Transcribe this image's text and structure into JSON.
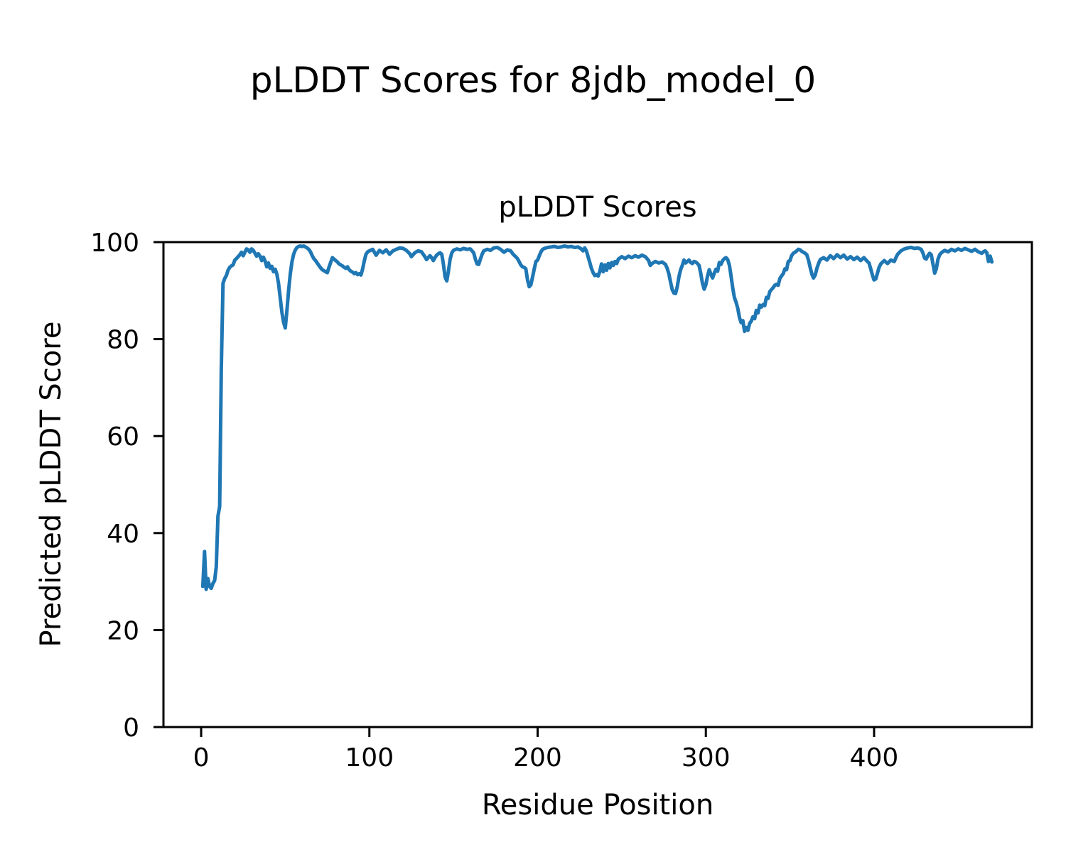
{
  "figure": {
    "suptitle": "pLDDT Scores for 8jdb_model_0",
    "background_color": "#ffffff",
    "text_color": "#000000"
  },
  "chart_data": {
    "type": "line",
    "title": "pLDDT Scores",
    "xlabel": "Residue Position",
    "ylabel": "Predicted pLDDT Score",
    "xlim": [
      -22.4,
      493.8
    ],
    "ylim": [
      0,
      100
    ],
    "xticks": [
      0,
      100,
      200,
      300,
      400
    ],
    "yticks": [
      0,
      20,
      40,
      60,
      80,
      100
    ],
    "grid": false,
    "legend": null,
    "line_color": "#1f77b4",
    "series": [
      {
        "name": "pLDDT",
        "x": [
          1,
          2,
          3,
          4,
          5,
          6,
          7,
          8,
          9,
          10,
          11,
          12,
          13,
          14,
          15,
          16,
          17,
          18,
          19,
          20,
          21,
          22,
          23,
          24,
          25,
          26,
          27,
          28,
          29,
          30,
          31,
          32,
          33,
          34,
          35,
          36,
          37,
          38,
          39,
          40,
          41,
          42,
          43,
          44,
          45,
          46,
          47,
          48,
          49,
          50,
          51,
          52,
          53,
          54,
          55,
          56,
          57,
          58,
          59,
          60,
          61,
          62,
          63,
          64,
          65,
          66,
          67,
          68,
          69,
          70,
          71,
          72,
          73,
          74,
          75,
          76,
          77,
          78,
          79,
          80,
          81,
          82,
          83,
          84,
          85,
          86,
          87,
          88,
          89,
          90,
          91,
          92,
          93,
          94,
          95,
          96,
          97,
          98,
          99,
          100,
          102,
          104,
          106,
          108,
          110,
          112,
          114,
          116,
          118,
          120,
          122,
          124,
          125,
          126,
          127,
          129,
          131,
          133,
          134,
          135,
          136,
          137,
          138,
          139,
          140,
          141,
          142,
          143,
          144,
          145,
          146,
          147,
          148,
          149,
          150,
          152,
          154,
          156,
          158,
          160,
          162,
          163,
          164,
          165,
          166,
          167,
          168,
          170,
          172,
          174,
          176,
          178,
          180,
          182,
          184,
          185,
          186,
          187,
          188,
          189,
          190,
          191,
          192,
          193,
          194,
          195,
          196,
          197,
          198,
          199,
          200,
          201,
          202,
          203,
          204,
          206,
          208,
          210,
          212,
          214,
          216,
          218,
          220,
          222,
          224,
          226,
          227,
          228,
          229,
          230,
          231,
          232,
          233,
          234,
          235,
          236,
          237,
          238,
          239,
          240,
          241,
          242,
          243,
          244,
          245,
          246,
          247,
          248,
          250,
          252,
          254,
          256,
          258,
          260,
          262,
          264,
          265,
          266,
          267,
          268,
          270,
          272,
          274,
          276,
          277,
          278,
          279,
          280,
          281,
          282,
          283,
          284,
          285,
          286,
          287,
          288,
          289,
          290,
          291,
          292,
          293,
          294,
          295,
          296,
          297,
          298,
          299,
          300,
          301,
          302,
          303,
          304,
          305,
          306,
          307,
          308,
          309,
          310,
          311,
          312,
          313,
          314,
          315,
          316,
          317,
          318,
          319,
          320,
          321,
          322,
          323,
          324,
          325,
          326,
          327,
          328,
          329,
          330,
          331,
          332,
          333,
          334,
          335,
          336,
          337,
          338,
          339,
          340,
          341,
          342,
          343,
          344,
          345,
          346,
          347,
          348,
          349,
          350,
          351,
          352,
          353,
          354,
          355,
          356,
          357,
          358,
          359,
          360,
          361,
          362,
          363,
          364,
          365,
          366,
          367,
          368,
          370,
          372,
          374,
          376,
          378,
          380,
          382,
          384,
          386,
          388,
          390,
          392,
          394,
          396,
          397,
          398,
          399,
          400,
          401,
          402,
          403,
          404,
          406,
          408,
          410,
          412,
          413,
          414,
          416,
          418,
          420,
          422,
          424,
          426,
          428,
          429,
          430,
          431,
          432,
          433,
          434,
          435,
          436,
          437,
          438,
          439,
          440,
          442,
          444,
          446,
          448,
          450,
          452,
          454,
          456,
          458,
          460,
          462,
          464,
          465,
          466,
          467,
          468,
          469,
          470
        ],
        "y": [
          29.0,
          36.2,
          28.4,
          30.6,
          29.0,
          28.6,
          29.6,
          30.2,
          33.0,
          43.5,
          45.5,
          74.0,
          91.5,
          92.5,
          93.1,
          94.2,
          94.8,
          95.1,
          95.3,
          96.3,
          96.6,
          97.0,
          97.4,
          97.9,
          97.2,
          97.9,
          98.6,
          98.4,
          97.9,
          98.6,
          98.3,
          97.7,
          97.1,
          97.6,
          97.1,
          96.2,
          96.9,
          96.1,
          94.9,
          95.7,
          94.6,
          95.0,
          93.9,
          94.4,
          93.4,
          91.5,
          88.5,
          85.5,
          83.5,
          82.3,
          86.0,
          90.0,
          93.5,
          96.0,
          97.5,
          98.4,
          98.9,
          99.1,
          99.2,
          99.1,
          99.2,
          99.0,
          98.8,
          98.5,
          98.0,
          97.2,
          96.6,
          96.2,
          95.7,
          95.2,
          94.7,
          94.3,
          94.1,
          93.9,
          93.7,
          94.8,
          95.8,
          96.8,
          96.5,
          96.2,
          95.9,
          95.5,
          95.3,
          95.1,
          94.8,
          94.6,
          94.9,
          94.3,
          94.0,
          93.8,
          93.5,
          93.7,
          93.3,
          93.5,
          93.2,
          94.5,
          96.2,
          97.5,
          98.0,
          98.2,
          98.5,
          97.3,
          98.3,
          97.8,
          98.4,
          97.5,
          98.2,
          98.5,
          98.8,
          98.7,
          98.3,
          97.6,
          97.0,
          97.4,
          97.8,
          98.2,
          98.0,
          97.0,
          96.4,
          96.8,
          97.2,
          96.8,
          96.2,
          96.8,
          97.3,
          97.6,
          97.8,
          97.5,
          95.5,
          92.8,
          92.0,
          94.0,
          96.5,
          97.8,
          98.3,
          98.6,
          98.4,
          98.7,
          98.5,
          98.6,
          97.8,
          96.5,
          95.5,
          95.4,
          96.5,
          97.5,
          98.2,
          98.5,
          98.3,
          98.8,
          98.9,
          98.5,
          97.9,
          98.4,
          98.2,
          97.7,
          97.3,
          97.0,
          96.6,
          96.0,
          95.3,
          94.9,
          94.8,
          94.5,
          92.2,
          90.8,
          91.2,
          92.8,
          94.5,
          96.0,
          96.3,
          97.2,
          98.0,
          98.5,
          98.7,
          98.9,
          99.0,
          99.1,
          98.9,
          99.0,
          99.2,
          99.0,
          99.1,
          98.9,
          99.0,
          98.6,
          98.2,
          98.8,
          98.2,
          97.0,
          95.8,
          94.6,
          93.7,
          93.1,
          93.3,
          93.0,
          94.0,
          95.5,
          93.9,
          95.3,
          94.2,
          95.6,
          94.7,
          95.8,
          95.2,
          96.0,
          95.6,
          96.5,
          97.0,
          96.6,
          97.1,
          96.8,
          97.2,
          96.9,
          97.3,
          97.0,
          96.6,
          96.2,
          95.2,
          95.6,
          96.0,
          95.7,
          95.9,
          95.4,
          94.6,
          93.5,
          91.8,
          90.2,
          89.5,
          89.4,
          90.8,
          92.8,
          94.3,
          95.2,
          96.3,
          95.7,
          96.0,
          96.3,
          95.8,
          95.6,
          96.0,
          95.9,
          95.6,
          95.2,
          93.5,
          91.5,
          90.3,
          91.2,
          93.0,
          94.3,
          93.4,
          92.6,
          93.6,
          94.4,
          94.0,
          95.8,
          95.4,
          96.2,
          96.6,
          96.8,
          96.4,
          95.2,
          93.0,
          90.5,
          88.5,
          87.6,
          86.3,
          84.4,
          83.4,
          83.8,
          81.6,
          82.4,
          81.8,
          83.2,
          83.7,
          84.6,
          84.2,
          85.9,
          85.4,
          87.0,
          86.6,
          87.1,
          86.9,
          88.6,
          88.4,
          89.8,
          90.2,
          90.6,
          91.1,
          91.3,
          91.1,
          92.5,
          93.0,
          93.5,
          94.5,
          94.3,
          96.0,
          96.2,
          97.2,
          97.7,
          97.9,
          98.2,
          98.5,
          98.4,
          98.1,
          97.9,
          97.7,
          97.4,
          96.3,
          94.8,
          93.4,
          92.6,
          93.2,
          94.6,
          95.6,
          96.4,
          96.8,
          96.3,
          97.2,
          96.6,
          97.4,
          96.8,
          97.3,
          96.5,
          97.0,
          96.4,
          96.9,
          96.2,
          96.8,
          96.0,
          95.7,
          94.5,
          93.2,
          92.2,
          92.4,
          93.6,
          94.8,
          95.5,
          96.2,
          95.6,
          96.3,
          96.0,
          96.8,
          97.5,
          98.2,
          98.6,
          98.8,
          98.9,
          98.7,
          98.8,
          98.5,
          97.8,
          96.7,
          96.5,
          97.2,
          97.7,
          97.4,
          95.5,
          93.6,
          94.5,
          96.5,
          97.4,
          97.8,
          98.3,
          98.0,
          98.5,
          98.2,
          98.6,
          98.3,
          98.7,
          98.4,
          98.1,
          98.5,
          98.0,
          97.7,
          98.0,
          98.2,
          97.8,
          96.0,
          97.1,
          95.9
        ]
      }
    ]
  }
}
